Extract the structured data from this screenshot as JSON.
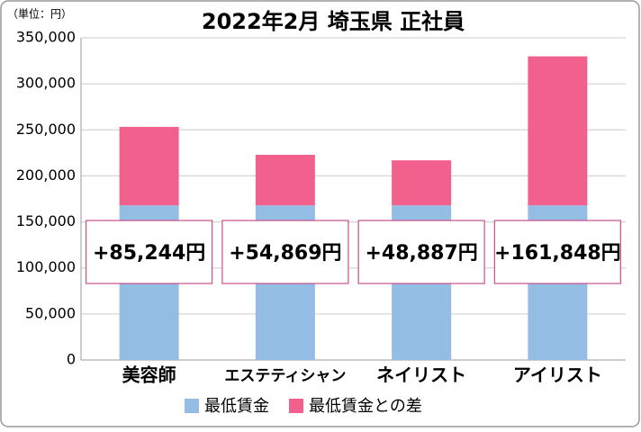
{
  "chart_data": {
    "type": "stacked_bar",
    "title": "2022年2月 埼玉県 正社員",
    "unit_label": "（単位：円）",
    "categories": [
      "美容師",
      "エステティシャン",
      "ネイリスト",
      "アイリスト"
    ],
    "series": [
      {
        "name": "最低賃金",
        "color": "#93bde3",
        "values": [
          168000,
          168000,
          168000,
          168000
        ]
      },
      {
        "name": "最低賃金との差",
        "color": "#f2608e",
        "values": [
          85244,
          54869,
          48887,
          161848
        ],
        "value_labels": [
          "+85,244円",
          "+54,869円",
          "+48,887円",
          "+161,848円"
        ]
      }
    ],
    "ylim": [
      0,
      350000
    ],
    "yticks": [
      0,
      {
        "value": 50000,
        "label": "50,000"
      },
      {
        "value": 100000,
        "label": "100,000"
      },
      {
        "value": 150000,
        "label": "150,000"
      },
      {
        "value": 200000,
        "label": "200,000"
      },
      {
        "value": 250000,
        "label": "250,000"
      },
      {
        "value": 300000,
        "label": "300,000"
      },
      {
        "value": 350000,
        "label": "350,000"
      }
    ],
    "grid": true,
    "legend": "bottom"
  }
}
